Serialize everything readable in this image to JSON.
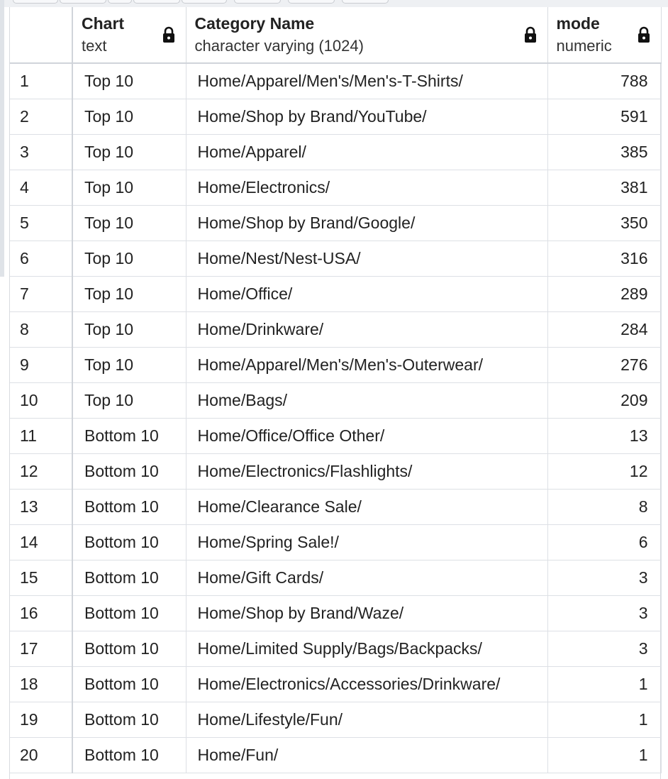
{
  "columns": {
    "chart": {
      "name": "Chart",
      "type": "text"
    },
    "category": {
      "name": "Category Name",
      "type": "character varying (1024)"
    },
    "mode": {
      "name": "mode",
      "type": "numeric"
    }
  },
  "rows": [
    {
      "idx": "1",
      "chart": "Top 10",
      "category": "Home/Apparel/Men's/Men's-T-Shirts/",
      "mode": "788"
    },
    {
      "idx": "2",
      "chart": "Top 10",
      "category": "Home/Shop by Brand/YouTube/",
      "mode": "591"
    },
    {
      "idx": "3",
      "chart": "Top 10",
      "category": "Home/Apparel/",
      "mode": "385"
    },
    {
      "idx": "4",
      "chart": "Top 10",
      "category": "Home/Electronics/",
      "mode": "381"
    },
    {
      "idx": "5",
      "chart": "Top 10",
      "category": "Home/Shop by Brand/Google/",
      "mode": "350"
    },
    {
      "idx": "6",
      "chart": "Top 10",
      "category": "Home/Nest/Nest-USA/",
      "mode": "316"
    },
    {
      "idx": "7",
      "chart": "Top 10",
      "category": "Home/Office/",
      "mode": "289"
    },
    {
      "idx": "8",
      "chart": "Top 10",
      "category": "Home/Drinkware/",
      "mode": "284"
    },
    {
      "idx": "9",
      "chart": "Top 10",
      "category": "Home/Apparel/Men's/Men's-Outerwear/",
      "mode": "276"
    },
    {
      "idx": "10",
      "chart": "Top 10",
      "category": "Home/Bags/",
      "mode": "209"
    },
    {
      "idx": "11",
      "chart": "Bottom 10",
      "category": "Home/Office/Office Other/",
      "mode": "13"
    },
    {
      "idx": "12",
      "chart": "Bottom 10",
      "category": "Home/Electronics/Flashlights/",
      "mode": "12"
    },
    {
      "idx": "13",
      "chart": "Bottom 10",
      "category": "Home/Clearance Sale/",
      "mode": "8"
    },
    {
      "idx": "14",
      "chart": "Bottom 10",
      "category": "Home/Spring Sale!/",
      "mode": "6"
    },
    {
      "idx": "15",
      "chart": "Bottom 10",
      "category": "Home/Gift Cards/",
      "mode": "3"
    },
    {
      "idx": "16",
      "chart": "Bottom 10",
      "category": "Home/Shop by Brand/Waze/",
      "mode": "3"
    },
    {
      "idx": "17",
      "chart": "Bottom 10",
      "category": "Home/Limited Supply/Bags/Backpacks/",
      "mode": "3"
    },
    {
      "idx": "18",
      "chart": "Bottom 10",
      "category": "Home/Electronics/Accessories/Drinkware/",
      "mode": "1"
    },
    {
      "idx": "19",
      "chart": "Bottom 10",
      "category": "Home/Lifestyle/Fun/",
      "mode": "1"
    },
    {
      "idx": "20",
      "chart": "Bottom 10",
      "category": "Home/Fun/",
      "mode": "1"
    }
  ]
}
